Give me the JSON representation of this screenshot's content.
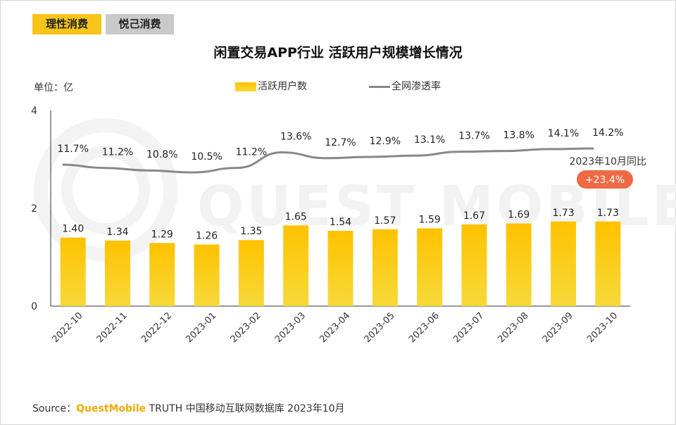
{
  "tabs": [
    "理性消费",
    "悦己消费"
  ],
  "unit_label": "单位：亿",
  "source": {
    "prefix": "Source：",
    "brand": "QuestMobile",
    "text": " TRUTH 中国移动互联网数据库 2023年10月"
  },
  "watermark": "QUEST MOBILE",
  "colors": {
    "bar_top": "#ffc200",
    "bar_bottom": "#f7d93a",
    "line": "#888888",
    "badge": "#ee6a44",
    "tab_active": "#f5c518",
    "tab_inactive": "#c9c9c9"
  },
  "chart_data": {
    "type": "bar",
    "title": "闲置交易APP行业 活跃用户规模增长情况",
    "categories": [
      "2022-10",
      "2022-11",
      "2022-12",
      "2023-01",
      "2023-02",
      "2023-03",
      "2023-04",
      "2023-05",
      "2023-06",
      "2023-07",
      "2023-08",
      "2023-09",
      "2023-10"
    ],
    "series": [
      {
        "name": "活跃用户数",
        "type": "bar",
        "values": [
          1.4,
          1.34,
          1.29,
          1.26,
          1.35,
          1.65,
          1.54,
          1.57,
          1.59,
          1.67,
          1.69,
          1.73,
          1.73
        ],
        "labels": [
          "1.40",
          "1.34",
          "1.29",
          "1.26",
          "1.35",
          "1.65",
          "1.54",
          "1.57",
          "1.59",
          "1.67",
          "1.69",
          "1.73",
          "1.73"
        ]
      },
      {
        "name": "全网渗透率",
        "type": "line",
        "values": [
          11.7,
          11.2,
          10.8,
          10.5,
          11.2,
          13.6,
          12.7,
          12.9,
          13.1,
          13.7,
          13.8,
          14.1,
          14.2
        ],
        "labels": [
          "11.7%",
          "11.2%",
          "10.8%",
          "10.5%",
          "11.2%",
          "13.6%",
          "12.7%",
          "12.9%",
          "13.1%",
          "13.7%",
          "13.8%",
          "14.1%",
          "14.2%"
        ]
      }
    ],
    "yticks": [
      "0",
      "2",
      "4"
    ],
    "ylim": [
      0,
      4
    ],
    "annotation": {
      "text": "2023年10月同比",
      "value": "+23.4%"
    }
  }
}
